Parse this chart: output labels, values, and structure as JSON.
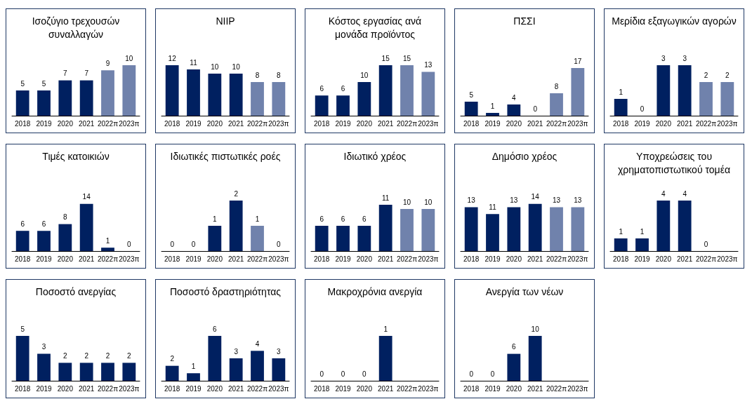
{
  "chart_data": [
    {
      "type": "bar",
      "title": "Ισοζύγιο τρεχουσών συναλλαγών",
      "categories": [
        "2018",
        "2019",
        "2020",
        "2021",
        "2022π",
        "2023π"
      ],
      "values": [
        5,
        5,
        7,
        7,
        9,
        10
      ],
      "colors": [
        "#002060",
        "#002060",
        "#002060",
        "#002060",
        "#7082ac",
        "#7082ac"
      ],
      "data_labels": true
    },
    {
      "type": "bar",
      "title": "NIIP",
      "categories": [
        "2018",
        "2019",
        "2020",
        "2021",
        "2022π",
        "2023π"
      ],
      "values": [
        12,
        11,
        10,
        10,
        8,
        8
      ],
      "colors": [
        "#002060",
        "#002060",
        "#002060",
        "#002060",
        "#7082ac",
        "#7082ac"
      ],
      "data_labels": true
    },
    {
      "type": "bar",
      "title": "Κόστος εργασίας ανά μονάδα προϊόντος",
      "categories": [
        "2018",
        "2019",
        "2020",
        "2021",
        "2022π",
        "2023π"
      ],
      "values": [
        6,
        6,
        10,
        15,
        15,
        13
      ],
      "colors": [
        "#002060",
        "#002060",
        "#002060",
        "#002060",
        "#7082ac",
        "#7082ac"
      ],
      "data_labels": true
    },
    {
      "type": "bar",
      "title": "ΠΣΣΙ",
      "categories": [
        "2018",
        "2019",
        "2020",
        "2021",
        "2022π",
        "2023π"
      ],
      "values": [
        5,
        1,
        4,
        0,
        8,
        17
      ],
      "colors": [
        "#002060",
        "#002060",
        "#002060",
        "#002060",
        "#7082ac",
        "#7082ac"
      ],
      "data_labels": true
    },
    {
      "type": "bar",
      "title": "Μερίδια εξαγωγικών αγορών",
      "categories": [
        "2018",
        "2019",
        "2020",
        "2021",
        "2022π",
        "2023π"
      ],
      "values": [
        1,
        0,
        3,
        3,
        2,
        2
      ],
      "colors": [
        "#002060",
        "#002060",
        "#002060",
        "#002060",
        "#7082ac",
        "#7082ac"
      ],
      "data_labels": true
    },
    {
      "type": "bar",
      "title": "Τιμές κατοικιών",
      "categories": [
        "2018",
        "2019",
        "2020",
        "2021",
        "2022π",
        "2023π"
      ],
      "values": [
        6,
        6,
        8,
        14,
        1,
        0
      ],
      "colors": [
        "#002060",
        "#002060",
        "#002060",
        "#002060",
        "#002060",
        "#002060"
      ],
      "data_labels": true
    },
    {
      "type": "bar",
      "title": "Ιδιωτικές πιστωτικές ροές",
      "categories": [
        "2018",
        "2019",
        "2020",
        "2021",
        "2022π",
        "2023π"
      ],
      "values": [
        0,
        0,
        1,
        2,
        1,
        0
      ],
      "colors": [
        "#002060",
        "#002060",
        "#002060",
        "#002060",
        "#7082ac",
        "#7082ac"
      ],
      "data_labels": true
    },
    {
      "type": "bar",
      "title": "Ιδιωτικό χρέος",
      "categories": [
        "2018",
        "2019",
        "2020",
        "2021",
        "2022π",
        "2023π"
      ],
      "values": [
        6,
        6,
        6,
        11,
        10,
        10
      ],
      "colors": [
        "#002060",
        "#002060",
        "#002060",
        "#002060",
        "#7082ac",
        "#7082ac"
      ],
      "data_labels": true
    },
    {
      "type": "bar",
      "title": "Δημόσιο χρέος",
      "categories": [
        "2018",
        "2019",
        "2020",
        "2021",
        "2022π",
        "2023π"
      ],
      "values": [
        13,
        11,
        13,
        14,
        13,
        13
      ],
      "colors": [
        "#002060",
        "#002060",
        "#002060",
        "#002060",
        "#7082ac",
        "#7082ac"
      ],
      "data_labels": true
    },
    {
      "type": "bar",
      "title": "Υποχρεώσεις του χρηματοπιστωτικού τομέα",
      "categories": [
        "2018",
        "2019",
        "2020",
        "2021",
        "2022π",
        "2023π"
      ],
      "values": [
        1,
        1,
        4,
        4,
        0,
        null
      ],
      "colors": [
        "#002060",
        "#002060",
        "#002060",
        "#002060",
        "#002060",
        "#002060"
      ],
      "data_labels": true
    },
    {
      "type": "bar",
      "title": "Ποσοστό ανεργίας",
      "categories": [
        "2018",
        "2019",
        "2020",
        "2021",
        "2022π",
        "2023π"
      ],
      "values": [
        5,
        3,
        2,
        2,
        2,
        2
      ],
      "colors": [
        "#002060",
        "#002060",
        "#002060",
        "#002060",
        "#002060",
        "#002060"
      ],
      "data_labels": true
    },
    {
      "type": "bar",
      "title": "Ποσοστό δραστηριότητας",
      "categories": [
        "2018",
        "2019",
        "2020",
        "2021",
        "2022π",
        "2023π"
      ],
      "values": [
        2,
        1,
        6,
        3,
        4,
        3
      ],
      "colors": [
        "#002060",
        "#002060",
        "#002060",
        "#002060",
        "#002060",
        "#002060"
      ],
      "data_labels": true
    },
    {
      "type": "bar",
      "title": "Μακροχρόνια ανεργία",
      "categories": [
        "2018",
        "2019",
        "2020",
        "2021",
        "2022π",
        "2023π"
      ],
      "values": [
        0,
        0,
        0,
        1,
        null,
        null
      ],
      "colors": [
        "#002060",
        "#002060",
        "#002060",
        "#002060",
        "#002060",
        "#002060"
      ],
      "data_labels": true
    },
    {
      "type": "bar",
      "title": "Ανεργία των νέων",
      "categories": [
        "2018",
        "2019",
        "2020",
        "2021",
        "2022π",
        "2023π"
      ],
      "values": [
        0,
        0,
        6,
        10,
        null,
        null
      ],
      "colors": [
        "#002060",
        "#002060",
        "#002060",
        "#002060",
        "#002060",
        "#002060"
      ],
      "data_labels": true
    }
  ]
}
